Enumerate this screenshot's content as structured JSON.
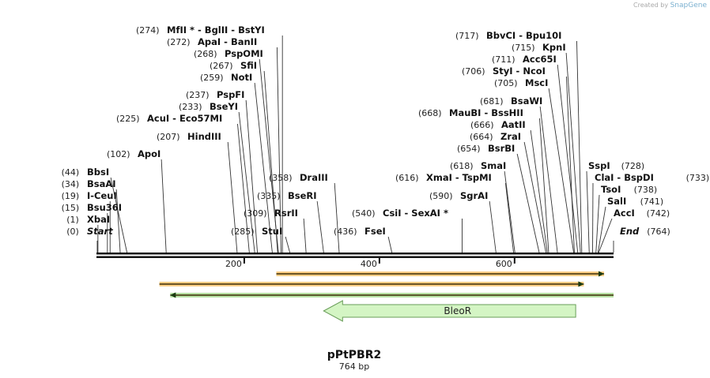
{
  "credit": {
    "prefix": "Created by",
    "brand": "SnapGene"
  },
  "plasmid": {
    "name": "pPtPBR2",
    "length_label": "764 bp",
    "length": 764
  },
  "sites": [
    {
      "pos": "(0)",
      "name": "Start",
      "italic": true,
      "at": 0
    },
    {
      "pos": "(1)",
      "name": "XbaI",
      "at": 1
    },
    {
      "pos": "(15)",
      "name": "Bsu36I",
      "at": 15
    },
    {
      "pos": "(19)",
      "name": "I-CeuI",
      "at": 19
    },
    {
      "pos": "(34)",
      "name": "BsaAI",
      "at": 34
    },
    {
      "pos": "(44)",
      "name": "BbsI",
      "at": 44
    },
    {
      "pos": "(102)",
      "name": "ApoI",
      "at": 102
    },
    {
      "pos": "(207)",
      "name": "HindIII",
      "at": 207
    },
    {
      "pos": "(225)",
      "name": "AcuI  -  Eco57MI",
      "at": 225
    },
    {
      "pos": "(233)",
      "name": "BseYI",
      "at": 233
    },
    {
      "pos": "(237)",
      "name": "PspFI",
      "at": 237
    },
    {
      "pos": "(259)",
      "name": "NotI",
      "at": 259
    },
    {
      "pos": "(267)",
      "name": "SfiI",
      "at": 267
    },
    {
      "pos": "(268)",
      "name": "PspOMI",
      "at": 268
    },
    {
      "pos": "(272)",
      "name": "ApaI  -  BanII",
      "at": 272
    },
    {
      "pos": "(274)",
      "name": "MfII *  -  BglII  -  BstYI",
      "at": 274
    },
    {
      "pos": "(285)",
      "name": "StuI",
      "at": 285
    },
    {
      "pos": "(309)",
      "name": "RsrII",
      "at": 309
    },
    {
      "pos": "(335)",
      "name": "BseRI",
      "at": 335
    },
    {
      "pos": "(358)",
      "name": "DraIII",
      "at": 358
    },
    {
      "pos": "(436)",
      "name": "FseI",
      "at": 436
    },
    {
      "pos": "(540)",
      "name": "CsiI  -  SexAI *",
      "at": 540
    },
    {
      "pos": "(590)",
      "name": "SgrAI",
      "at": 590
    },
    {
      "pos": "(616)",
      "name": "XmaI  -  TspMI",
      "at": 616
    },
    {
      "pos": "(618)",
      "name": "SmaI",
      "at": 618
    },
    {
      "pos": "(654)",
      "name": "BsrBI",
      "at": 654
    },
    {
      "pos": "(664)",
      "name": "ZraI",
      "at": 664
    },
    {
      "pos": "(666)",
      "name": "AatII",
      "at": 666
    },
    {
      "pos": "(668)",
      "name": "MauBI  -  BssHII",
      "at": 668
    },
    {
      "pos": "(681)",
      "name": "BsaWI",
      "at": 681
    },
    {
      "pos": "(705)",
      "name": "MscI",
      "at": 705
    },
    {
      "pos": "(706)",
      "name": "StyI  -  NcoI",
      "at": 706
    },
    {
      "pos": "(711)",
      "name": "Acc65I",
      "at": 711
    },
    {
      "pos": "(715)",
      "name": "KpnI",
      "at": 715
    },
    {
      "pos": "(717)",
      "name": "BbvCI  -  Bpu10I",
      "at": 717
    },
    {
      "pos": "(728)",
      "name": "SspI",
      "at": 728
    },
    {
      "pos": "(733)",
      "name": "ClaI  -  BspDI",
      "at": 733
    },
    {
      "pos": "(738)",
      "name": "TsoI",
      "at": 738
    },
    {
      "pos": "(741)",
      "name": "SalI",
      "at": 741
    },
    {
      "pos": "(742)",
      "name": "AccI",
      "at": 742
    },
    {
      "pos": "(764)",
      "name": "End",
      "italic": true,
      "at": 764
    }
  ],
  "ruler": {
    "ticks": [
      200,
      400,
      600
    ]
  },
  "features": [
    {
      "name": "primer-bind-upper",
      "start": 265,
      "end": 750,
      "dir": "right",
      "color": "#f5a623",
      "track": 1
    },
    {
      "name": "primer-bind-lower",
      "start": 92,
      "end": 720,
      "dir": "right",
      "color": "#f5a623",
      "track": 2
    },
    {
      "name": "primer-bind-green",
      "start": 108,
      "end": 764,
      "dir": "left",
      "color": "#7cc95a",
      "track": 3
    }
  ],
  "gene": {
    "label": "BleoR",
    "start": 335,
    "end": 708,
    "dir": "left",
    "fill": "#d4f5c4",
    "stroke": "#6a9e5a"
  }
}
